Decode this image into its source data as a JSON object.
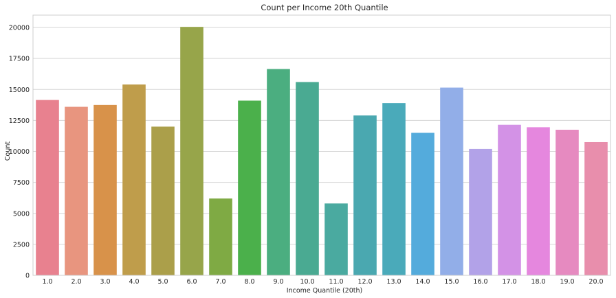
{
  "chart_data": {
    "type": "bar",
    "title": "Count per Income 20th Quantile",
    "xlabel": "Income Quantile (20th)",
    "ylabel": "Count",
    "categories": [
      "1.0",
      "2.0",
      "3.0",
      "4.0",
      "5.0",
      "6.0",
      "7.0",
      "8.0",
      "9.0",
      "10.0",
      "11.0",
      "12.0",
      "13.0",
      "14.0",
      "15.0",
      "16.0",
      "17.0",
      "18.0",
      "19.0",
      "20.0"
    ],
    "values": [
      14150,
      13600,
      13750,
      15400,
      12000,
      20050,
      6200,
      14100,
      16650,
      15600,
      5800,
      12900,
      13900,
      11500,
      15150,
      10200,
      12150,
      11950,
      11750,
      10750
    ],
    "colors": [
      "#e8818f",
      "#e8957f",
      "#d8924a",
      "#bf9d4b",
      "#ab9f4a",
      "#97a54a",
      "#7faa44",
      "#4bb04b",
      "#4bae80",
      "#4aaa92",
      "#4aaaa0",
      "#4aa8b0",
      "#4aaaba",
      "#54abdc",
      "#92aee8",
      "#b2a2e8",
      "#d392e6",
      "#e587de",
      "#e68ac0",
      "#e88eac"
    ],
    "yticks": [
      0,
      2500,
      5000,
      7500,
      10000,
      12500,
      15000,
      17500,
      20000
    ],
    "ylim": [
      0,
      21000
    ],
    "grid": true
  }
}
